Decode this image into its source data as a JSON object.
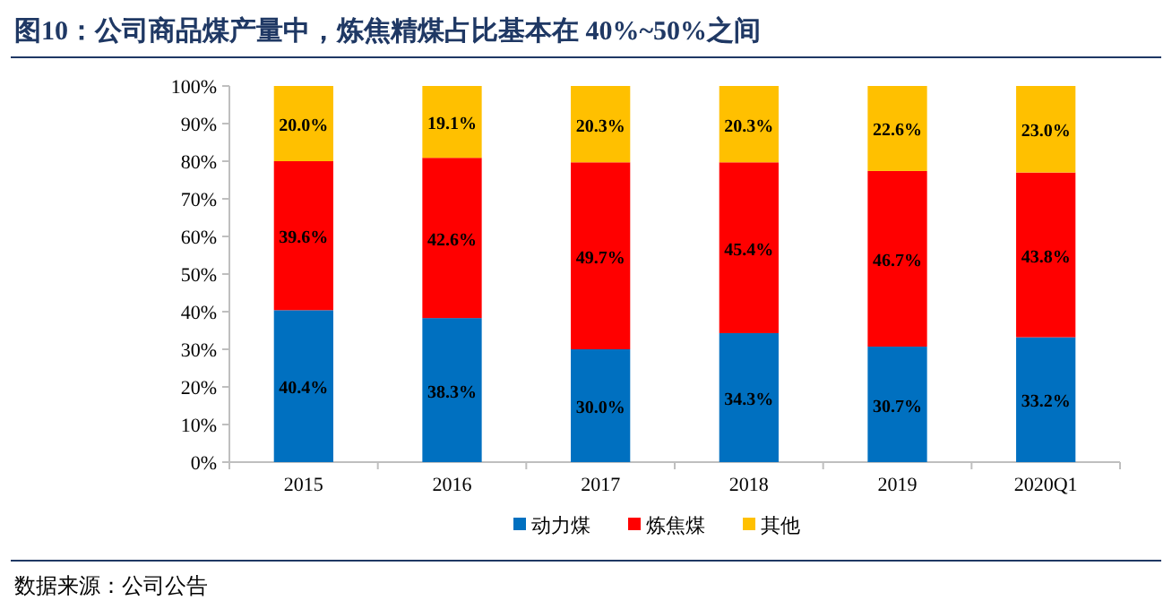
{
  "chart_data": {
    "type": "bar",
    "stacked": true,
    "title": "图10：公司商品煤产量中，炼焦精煤占比基本在 40%~50%之间",
    "categories": [
      "2015",
      "2016",
      "2017",
      "2018",
      "2019",
      "2020Q1"
    ],
    "series": [
      {
        "name": "动力煤",
        "color": "#0070c0",
        "values": [
          40.4,
          38.3,
          30.0,
          34.3,
          30.7,
          33.2
        ],
        "value_labels": [
          "40.4%",
          "38.3%",
          "30.0%",
          "34.3%",
          "30.7%",
          "33.2%"
        ]
      },
      {
        "name": "炼焦煤",
        "color": "#ff0000",
        "values": [
          39.6,
          42.6,
          49.7,
          45.4,
          46.7,
          43.8
        ],
        "value_labels": [
          "39.6%",
          "42.6%",
          "49.7%",
          "45.4%",
          "46.7%",
          "43.8%"
        ]
      },
      {
        "name": "其他",
        "color": "#ffc000",
        "values": [
          20.0,
          19.1,
          20.3,
          20.3,
          22.6,
          23.0
        ],
        "value_labels": [
          "20.0%",
          "19.1%",
          "20.3%",
          "20.3%",
          "22.6%",
          "23.0%"
        ]
      }
    ],
    "ylim": [
      0,
      100
    ],
    "yticks": [
      {
        "value": 0,
        "label": "0%"
      },
      {
        "value": 10,
        "label": "10%"
      },
      {
        "value": 20,
        "label": "20%"
      },
      {
        "value": 30,
        "label": "30%"
      },
      {
        "value": 40,
        "label": "40%"
      },
      {
        "value": 50,
        "label": "50%"
      },
      {
        "value": 60,
        "label": "60%"
      },
      {
        "value": 70,
        "label": "70%"
      },
      {
        "value": 80,
        "label": "80%"
      },
      {
        "value": 90,
        "label": "90%"
      },
      {
        "value": 100,
        "label": "100%"
      }
    ],
    "legend": "bottom",
    "annotations": [
      "数据来源：公司公告"
    ]
  }
}
